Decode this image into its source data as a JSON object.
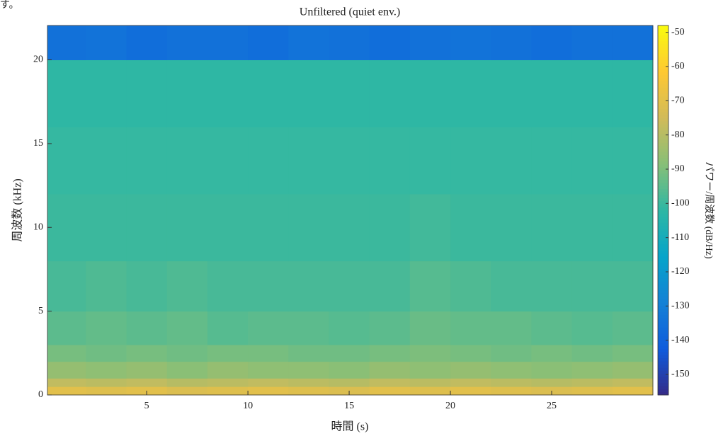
{
  "page_text": "す。",
  "chart_data": {
    "type": "spectrogram",
    "title": "Unfiltered (quiet env.)",
    "x_label": "時間 (s)",
    "y_label": "周波数 (kHz)",
    "colorbar_label": "パワー/周波数 (dB/Hz)",
    "x_bins": [
      0.1,
      2,
      4,
      6,
      8,
      10,
      12,
      14,
      16,
      18,
      20,
      22,
      24,
      26,
      28,
      30
    ],
    "y_bins": [
      0,
      0.5,
      1,
      2,
      3,
      5,
      8,
      12,
      16,
      20,
      22.05
    ],
    "values": [
      [
        -70,
        -71,
        -70,
        -72,
        -71,
        -70,
        -71,
        -72,
        -70,
        -71,
        -70,
        -71,
        -72,
        -71,
        -70
      ],
      [
        -78,
        -79,
        -78,
        -80,
        -79,
        -78,
        -79,
        -80,
        -78,
        -79,
        -78,
        -79,
        -80,
        -79,
        -78
      ],
      [
        -86,
        -87,
        -86,
        -88,
        -86,
        -87,
        -87,
        -88,
        -86,
        -87,
        -86,
        -87,
        -88,
        -87,
        -86
      ],
      [
        -91,
        -92,
        -91,
        -92,
        -91,
        -91,
        -92,
        -92,
        -91,
        -90,
        -91,
        -92,
        -91,
        -92,
        -91
      ],
      [
        -95,
        -94,
        -95,
        -94,
        -96,
        -95,
        -95,
        -96,
        -95,
        -93,
        -94,
        -94,
        -95,
        -96,
        -95
      ],
      [
        -98,
        -97,
        -98,
        -97,
        -98,
        -98,
        -98,
        -98,
        -98,
        -96,
        -97,
        -98,
        -98,
        -98,
        -98
      ],
      [
        -100,
        -100,
        -100,
        -100,
        -100,
        -100,
        -100,
        -100,
        -100,
        -99,
        -100,
        -100,
        -100,
        -100,
        -100
      ],
      [
        -101,
        -101,
        -101,
        -101,
        -101,
        -101,
        -101,
        -101,
        -101,
        -101,
        -101,
        -101,
        -101,
        -101,
        -101
      ],
      [
        -102,
        -102,
        -102,
        -102,
        -102,
        -102,
        -102,
        -102,
        -102,
        -102,
        -102,
        -102,
        -102,
        -102,
        -102
      ],
      [
        -135,
        -134,
        -136,
        -135,
        -135,
        -136,
        -134,
        -135,
        -136,
        -135,
        -134,
        -135,
        -136,
        -135,
        -135
      ]
    ],
    "xlim": [
      0.1,
      30
    ],
    "ylim": [
      0,
      22.05
    ],
    "xticks": [
      5,
      10,
      15,
      20,
      25
    ],
    "yticks": [
      0,
      5,
      10,
      15,
      20
    ],
    "clim": [
      -156,
      -48
    ],
    "cticks": [
      -150,
      -140,
      -130,
      -120,
      -110,
      -100,
      -90,
      -80,
      -70,
      -60,
      -50
    ],
    "colormap": [
      "#352a87",
      "#0f5cdd",
      "#1481d6",
      "#06a4ca",
      "#2eb7a4",
      "#87bf77",
      "#d1bb59",
      "#fec832",
      "#f9fb0e"
    ]
  }
}
